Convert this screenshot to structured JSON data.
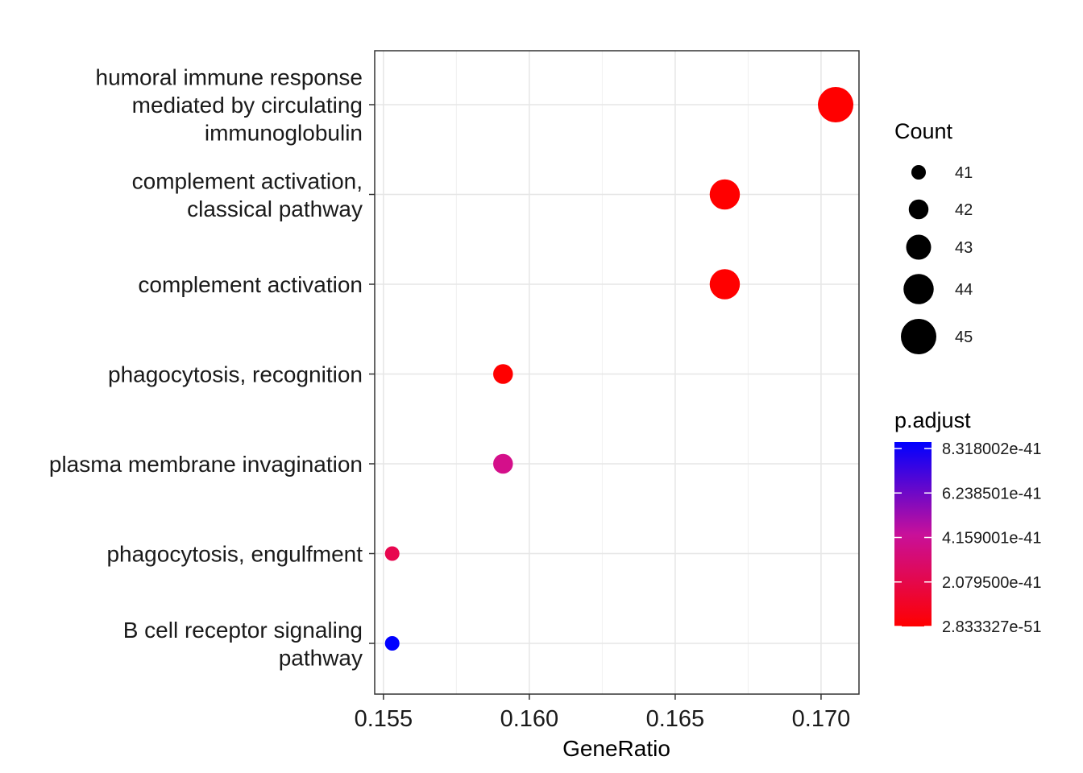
{
  "chart_data": {
    "type": "scatter",
    "xlabel": "GeneRatio",
    "ylabel": "",
    "xlim": [
      0.1547,
      0.1713
    ],
    "x_ticks": [
      "0.155",
      "0.160",
      "0.165",
      "0.170"
    ],
    "x_tick_values": [
      0.155,
      0.16,
      0.165,
      0.17
    ],
    "grid": true,
    "categories": [
      [
        "humoral immune response",
        "mediated by circulating",
        "immunoglobulin"
      ],
      [
        "complement activation,",
        "classical pathway"
      ],
      [
        "complement activation"
      ],
      [
        "phagocytosis, recognition"
      ],
      [
        "plasma membrane invagination"
      ],
      [
        "phagocytosis, engulfment"
      ],
      [
        "B cell receptor signaling",
        "pathway"
      ]
    ],
    "points": [
      {
        "x": 0.1705,
        "count": 45,
        "p_adjust": 2.833327e-51,
        "color": "#ff0000"
      },
      {
        "x": 0.1667,
        "count": 44,
        "p_adjust": 2.833327e-51,
        "color": "#ff0000"
      },
      {
        "x": 0.1667,
        "count": 44,
        "p_adjust": 2.833327e-51,
        "color": "#ff0000"
      },
      {
        "x": 0.1591,
        "count": 42,
        "p_adjust": 2.833327e-51,
        "color": "#ff0000"
      },
      {
        "x": 0.1591,
        "count": 42,
        "p_adjust": 4e-41,
        "color": "#d40f8a"
      },
      {
        "x": 0.1553,
        "count": 41,
        "p_adjust": 2.2e-41,
        "color": "#e8064f"
      },
      {
        "x": 0.1553,
        "count": 41,
        "p_adjust": 8.318002e-41,
        "color": "#0000ff"
      }
    ],
    "legend_size": {
      "title": "Count",
      "values": [
        "41",
        "42",
        "43",
        "44",
        "45"
      ],
      "placement": "right"
    },
    "legend_color": {
      "title": "p.adjust",
      "labels": [
        "8.318002e-41",
        "6.238501e-41",
        "4.159001e-41",
        "2.079500e-41",
        "2.833327e-51"
      ],
      "high_color": "#0000ff",
      "low_color": "#ff0000",
      "placement": "right"
    }
  }
}
